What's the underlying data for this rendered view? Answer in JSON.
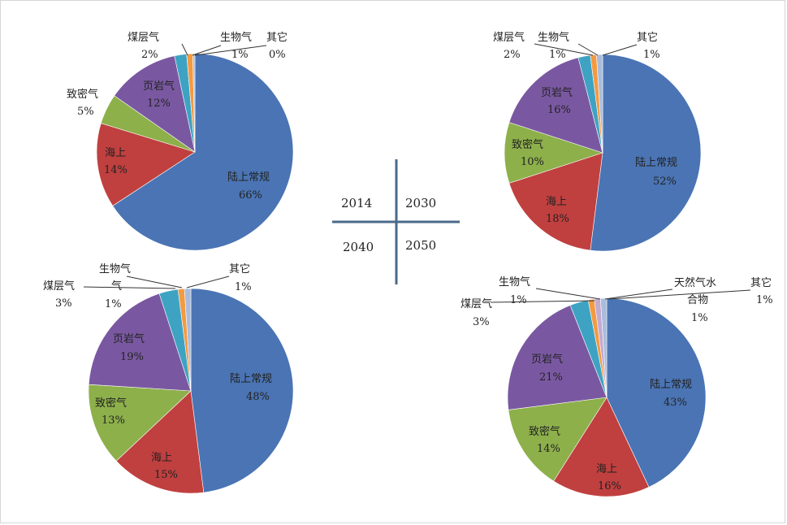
{
  "colors": {
    "陆上常规": "#4a74b4",
    "海上": "#c0403f",
    "致密气": "#8db04b",
    "页岩气": "#7a58a1",
    "煤层气": "#3ea3c3",
    "生物气": "#f39a42",
    "其它": "#a9bcdc",
    "天然气水合物": "#c3aad0"
  },
  "quadrant_labels": [
    "2014",
    "2030",
    "2040",
    "2050"
  ],
  "chart_data": [
    {
      "type": "pie",
      "id": "2014",
      "slices": [
        {
          "label": "陆上常规",
          "value": 66,
          "text": "66%"
        },
        {
          "label": "海上",
          "value": 14,
          "text": "14%"
        },
        {
          "label": "致密气",
          "value": 5,
          "text": "5%"
        },
        {
          "label": "页岩气",
          "value": 12,
          "text": "12%"
        },
        {
          "label": "煤层气",
          "value": 2,
          "text": "2%"
        },
        {
          "label": "生物气",
          "value": 1,
          "text": "1%"
        },
        {
          "label": "其它",
          "value": 0,
          "text": "0%"
        }
      ]
    },
    {
      "type": "pie",
      "id": "2030",
      "slices": [
        {
          "label": "陆上常规",
          "value": 52,
          "text": "52%"
        },
        {
          "label": "海上",
          "value": 18,
          "text": "18%"
        },
        {
          "label": "致密气",
          "value": 10,
          "text": "10%"
        },
        {
          "label": "页岩气",
          "value": 16,
          "text": "16%"
        },
        {
          "label": "煤层气",
          "value": 2,
          "text": "2%"
        },
        {
          "label": "生物气",
          "value": 1,
          "text": "1%"
        },
        {
          "label": "其它",
          "value": 1,
          "text": "1%"
        }
      ]
    },
    {
      "type": "pie",
      "id": "2040",
      "slices": [
        {
          "label": "陆上常规",
          "value": 48,
          "text": "48%"
        },
        {
          "label": "海上",
          "value": 15,
          "text": "15%"
        },
        {
          "label": "致密气",
          "value": 13,
          "text": "13%"
        },
        {
          "label": "页岩气",
          "value": 19,
          "text": "19%"
        },
        {
          "label": "煤层气",
          "value": 3,
          "text": "3%"
        },
        {
          "label": "生物气",
          "value": 1,
          "text": "1%"
        },
        {
          "label": "其它",
          "value": 1,
          "text": "1%"
        }
      ]
    },
    {
      "type": "pie",
      "id": "2050",
      "slices": [
        {
          "label": "陆上常规",
          "value": 43,
          "text": "43%"
        },
        {
          "label": "海上",
          "value": 16,
          "text": "16%"
        },
        {
          "label": "致密气",
          "value": 14,
          "text": "14%"
        },
        {
          "label": "页岩气",
          "value": 21,
          "text": "21%"
        },
        {
          "label": "煤层气",
          "value": 3,
          "text": "3%"
        },
        {
          "label": "生物气",
          "value": 1,
          "text": "1%"
        },
        {
          "label": "天然气水合物",
          "value": 1,
          "text": "1%"
        },
        {
          "label": "其它",
          "value": 1,
          "text": "1%"
        }
      ]
    }
  ]
}
